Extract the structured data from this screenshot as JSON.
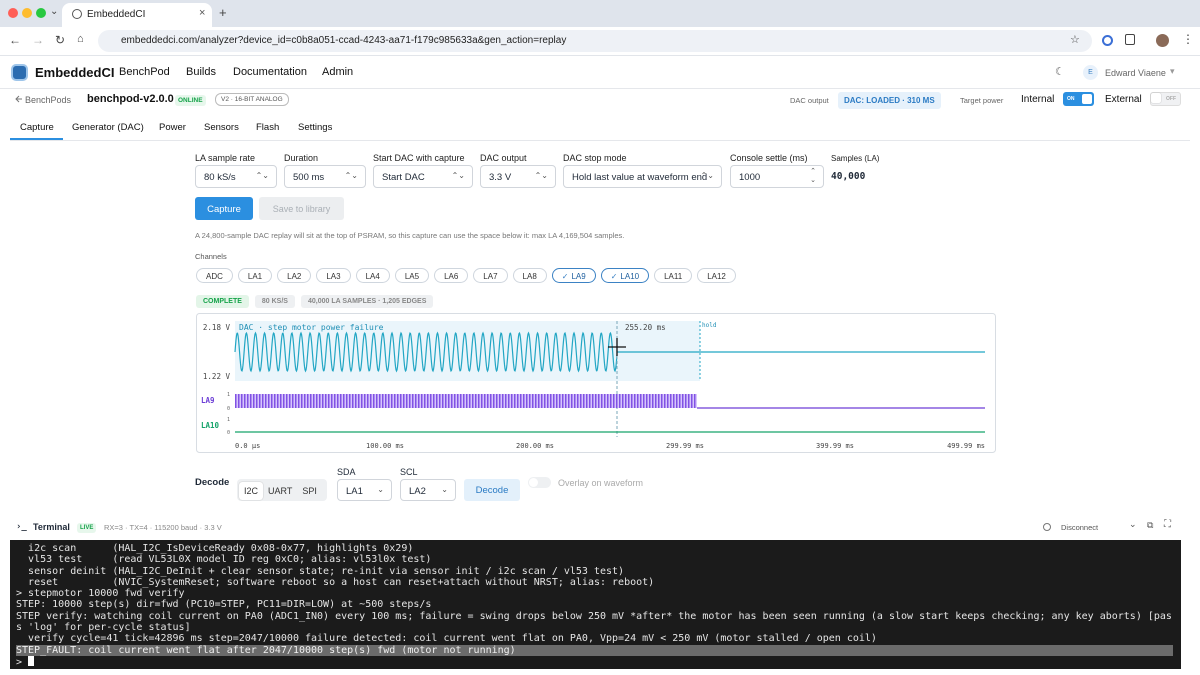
{
  "browser": {
    "tab_title": "EmbeddedCI",
    "url": "embeddedci.com/analyzer?device_id=c0b8a051-ccad-4243-aa71-f179c985633a&gen_action=replay"
  },
  "nav": {
    "brand": "EmbeddedCI",
    "links": [
      "BenchPod",
      "Builds",
      "Documentation",
      "Admin"
    ],
    "user_initial": "E",
    "user_name": "Edward Viaene"
  },
  "device": {
    "back": "BenchPods",
    "name": "benchpod-v2.0.0",
    "status": "ONLINE",
    "badge": "V2 · 16-BIT ANALOG",
    "dac_output_label": "DAC output",
    "dac_status": "DAC: LOADED · 310 MS",
    "target_power_label": "Target power",
    "internal": "Internal",
    "internal_toggle": "ON",
    "external": "External",
    "external_toggle": "OFF"
  },
  "tabs": [
    "Capture",
    "Generator (DAC)",
    "Power",
    "Sensors",
    "Flash",
    "Settings"
  ],
  "form": {
    "fields": [
      {
        "label": "LA sample rate",
        "value": "80 kS/s"
      },
      {
        "label": "Duration",
        "value": "500 ms"
      },
      {
        "label": "Start DAC with capture",
        "value": "Start DAC"
      },
      {
        "label": "DAC output",
        "value": "3.3 V"
      },
      {
        "label": "DAC stop mode",
        "value": "Hold last value at waveform end"
      },
      {
        "label": "Console settle (ms)",
        "value": "1000"
      }
    ],
    "samples_label": "Samples (LA)",
    "samples_value": "40,000",
    "capture": "Capture",
    "save": "Save to library",
    "note": "A 24,800-sample DAC replay will sit at the top of PSRAM, so this capture can use the space below it: max LA 4,169,504 samples."
  },
  "channels": {
    "label": "Channels",
    "items": [
      {
        "label": "ADC",
        "checked": false
      },
      {
        "label": "LA1",
        "checked": false
      },
      {
        "label": "LA2",
        "checked": false
      },
      {
        "label": "LA3",
        "checked": false
      },
      {
        "label": "LA4",
        "checked": false
      },
      {
        "label": "LA5",
        "checked": false
      },
      {
        "label": "LA6",
        "checked": false
      },
      {
        "label": "LA7",
        "checked": false
      },
      {
        "label": "LA8",
        "checked": false
      },
      {
        "label": "LA9",
        "checked": true
      },
      {
        "label": "LA10",
        "checked": true
      },
      {
        "label": "LA11",
        "checked": false
      },
      {
        "label": "LA12",
        "checked": false
      }
    ]
  },
  "status": [
    "COMPLETE",
    "80 KS/S",
    "40,000 LA SAMPLES · 1,205 EDGES"
  ],
  "waveform": {
    "dac_title": "DAC · step motor power failure",
    "dac_max": "2.18 V",
    "dac_min": "1.22 V",
    "cursor": "255.20 ms",
    "hold": "hold",
    "channels": [
      {
        "name": "LA9",
        "high": "1",
        "low": "0"
      },
      {
        "name": "LA10",
        "high": "1",
        "low": "0"
      }
    ],
    "time_labels": [
      "0.0 µs",
      "100.00 ms",
      "200.00 ms",
      "299.99 ms",
      "399.99 ms",
      "499.99 ms"
    ]
  },
  "decode": {
    "label": "Decode",
    "protocols": [
      "I2C",
      "UART",
      "SPI"
    ],
    "sda_label": "SDA",
    "sda": "LA1",
    "scl_label": "SCL",
    "scl": "LA2",
    "button": "Decode",
    "overlay": "Overlay on waveform"
  },
  "terminal": {
    "title": "Terminal",
    "live": "LIVE",
    "info": "RX=3 · TX=4 · 115200 baud · 3.3 V",
    "disconnect": "Disconnect",
    "lines": [
      "  i2c scan      (HAL_I2C_IsDeviceReady 0x08-0x77, highlights 0x29)",
      "  vl53 test     (read VL53L0X model ID reg 0xC0; alias: vl53l0x test)",
      "  sensor deinit (HAL_I2C_DeInit + clear sensor state; re-init via sensor init / i2c scan / vl53 test)",
      "  reset         (NVIC_SystemReset; software reboot so a host can reset+attach without NRST; alias: reboot)",
      "> stepmotor 10000 fwd verify",
      "STEP: 10000 step(s) dir=fwd (PC10=STEP, PC11=DIR=LOW) at ~500 steps/s",
      "STEP verify: watching coil current on PA0 (ADC1_IN0) every 100 ms; failure = swing drops below 250 mV *after* the motor has been seen running (a slow start keeps checking; any key aborts) [pass 'log' for per-cycle status]",
      "  verify cycle=41 tick=42896 ms step=2047/10000 failure detected: coil current went flat on PA0, Vpp=24 mV < 250 mV (motor stalled / open coil)",
      "STEP_FAULT: coil current went flat after 2047/10000 step(s) fwd (motor not running)"
    ],
    "prompt": ">"
  }
}
